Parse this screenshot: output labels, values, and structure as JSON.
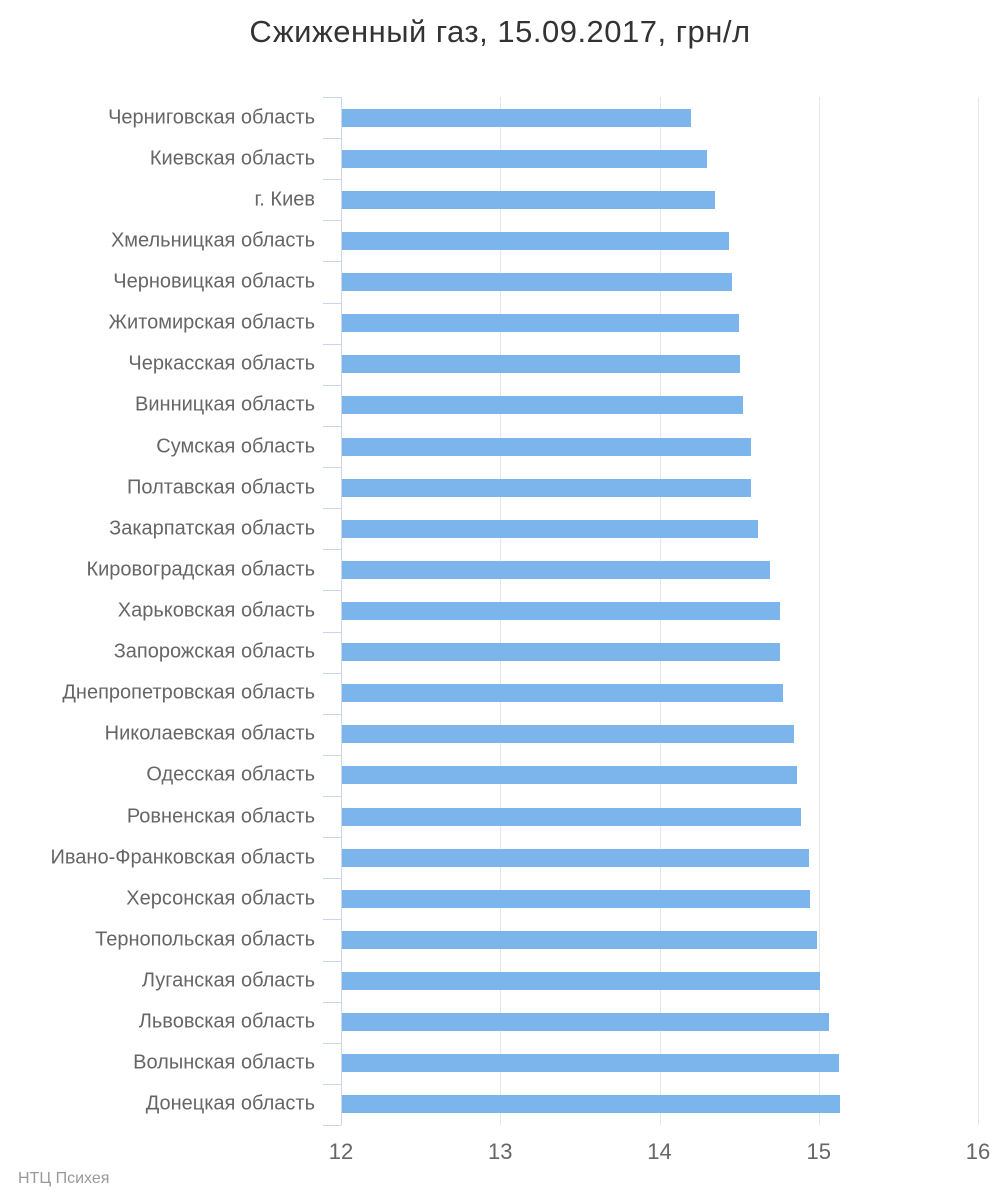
{
  "title": "Сжиженный газ, 15.09.2017, грн/л",
  "credits": "НТЦ Психея",
  "colors": {
    "bar": "#7cb5ec",
    "grid": "#e6e6e6",
    "category_axis": "#ccd6eb",
    "labels": "#666666",
    "title": "#333333",
    "credits": "#999999"
  },
  "chart_data": {
    "type": "bar",
    "orientation": "horizontal",
    "title": "Сжиженный газ, 15.09.2017, грн/л",
    "unit": "грн/л",
    "date": "15.09.2017",
    "source": "НТЦ Психея",
    "xlim": [
      12,
      16
    ],
    "x_ticks": [
      12,
      13,
      14,
      15,
      16
    ],
    "grid": true,
    "legend": false,
    "bar_color": "#7cb5ec",
    "categories": [
      "Черниговская область",
      "Киевская область",
      "г. Киев",
      "Хмельницкая область",
      "Черновицкая область",
      "Житомирская область",
      "Черкасская область",
      "Винницкая область",
      "Сумская область",
      "Полтавская область",
      "Закарпатская область",
      "Кировоградская область",
      "Харьковская область",
      "Запорожская область",
      "Днепропетровская область",
      "Николаевская область",
      "Одесская область",
      "Ровненская область",
      "Ивано-Франковская область",
      "Херсонская область",
      "Тернопольская область",
      "Луганская область",
      "Львовская область",
      "Волынская область",
      "Донецкая область"
    ],
    "values": [
      14.19,
      14.29,
      14.34,
      14.43,
      14.45,
      14.49,
      14.5,
      14.52,
      14.57,
      14.57,
      14.61,
      14.69,
      14.75,
      14.75,
      14.77,
      14.84,
      14.86,
      14.88,
      14.93,
      14.94,
      14.98,
      15.0,
      15.06,
      15.12,
      15.13
    ]
  }
}
